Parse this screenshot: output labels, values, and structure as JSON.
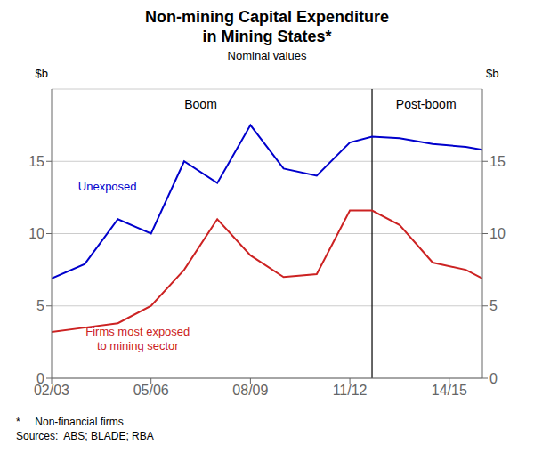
{
  "chart_data": {
    "type": "line",
    "title": "Non-mining Capital Expenditure\nin Mining States*",
    "subtitle": "Nominal values",
    "ylabel": "$b",
    "y2label": "$b",
    "x": [
      0,
      1,
      2,
      3,
      4,
      5,
      6,
      7,
      8,
      9,
      9.67,
      10.5,
      11.5,
      12.5,
      13
    ],
    "xlim": [
      0,
      13
    ],
    "xticks": [
      {
        "value": 0,
        "label": "02/03"
      },
      {
        "value": 3,
        "label": "05/06"
      },
      {
        "value": 6,
        "label": "08/09"
      },
      {
        "value": 9,
        "label": "11/12"
      },
      {
        "value": 12,
        "label": "14/15"
      }
    ],
    "ylim": [
      0,
      20
    ],
    "yticks": [
      0,
      5,
      10,
      15
    ],
    "y2lim": [
      0,
      20
    ],
    "y2ticks": [
      0,
      5,
      10,
      15
    ],
    "grid": "y",
    "series": [
      {
        "name": "Unexposed",
        "color": "#0000CC",
        "values": [
          6.9,
          7.9,
          11.0,
          10.0,
          15.0,
          13.5,
          17.5,
          14.5,
          14.0,
          16.3,
          16.7,
          16.6,
          16.2,
          16.0,
          15.8
        ],
        "label_x": 0.8,
        "label_y": 12.8
      },
      {
        "name": "Firms most exposed\nto mining sector",
        "color": "#CC2222",
        "values": [
          3.2,
          3.5,
          3.8,
          5.0,
          7.5,
          11.0,
          8.5,
          7.0,
          7.2,
          11.6,
          11.6,
          10.6,
          8.0,
          7.5,
          6.9
        ],
        "label_x": 2.6,
        "label_y": 3.8
      }
    ],
    "reference_lines": [
      {
        "x": 9.67,
        "color": "#000000"
      }
    ],
    "annotations": [
      {
        "text": "Boom",
        "x": 4.5,
        "y": 19.3
      },
      {
        "text": "Post-boom",
        "x": 11.3,
        "y": 19.3
      }
    ],
    "notes": [
      "*     Non-financial firms",
      "Sources:  ABS; BLADE; RBA"
    ]
  }
}
